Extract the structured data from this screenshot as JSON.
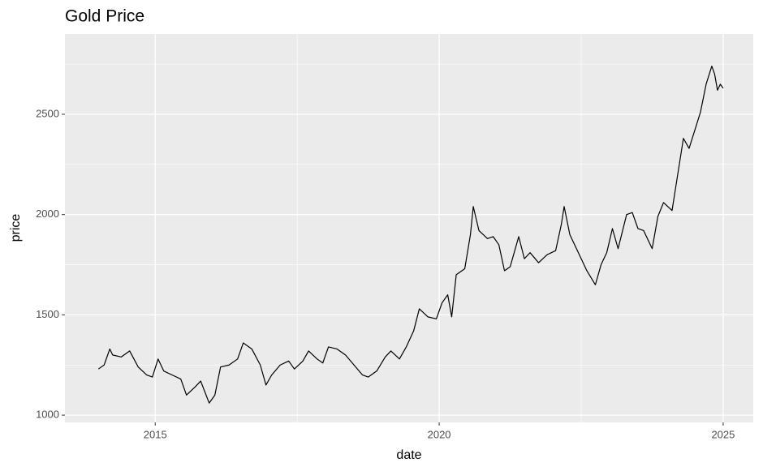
{
  "chart_data": {
    "type": "line",
    "title": "Gold Price",
    "x_label": "date",
    "y_label": "price",
    "x": [
      2014.0,
      2014.1,
      2014.2,
      2014.25,
      2014.4,
      2014.55,
      2014.7,
      2014.85,
      2014.95,
      2015.05,
      2015.15,
      2015.3,
      2015.45,
      2015.55,
      2015.7,
      2015.8,
      2015.95,
      2016.05,
      2016.15,
      2016.3,
      2016.45,
      2016.55,
      2016.7,
      2016.85,
      2016.95,
      2017.05,
      2017.2,
      2017.35,
      2017.45,
      2017.6,
      2017.7,
      2017.85,
      2017.95,
      2018.05,
      2018.2,
      2018.35,
      2018.5,
      2018.65,
      2018.75,
      2018.9,
      2019.05,
      2019.15,
      2019.3,
      2019.42,
      2019.55,
      2019.65,
      2019.8,
      2019.95,
      2020.05,
      2020.15,
      2020.22,
      2020.3,
      2020.45,
      2020.55,
      2020.6,
      2020.7,
      2020.85,
      2020.95,
      2021.05,
      2021.15,
      2021.25,
      2021.4,
      2021.5,
      2021.6,
      2021.75,
      2021.9,
      2022.05,
      2022.15,
      2022.2,
      2022.3,
      2022.45,
      2022.6,
      2022.75,
      2022.85,
      2022.95,
      2023.05,
      2023.15,
      2023.3,
      2023.4,
      2023.5,
      2023.6,
      2023.75,
      2023.85,
      2023.95,
      2024.1,
      2024.2,
      2024.3,
      2024.4,
      2024.5,
      2024.6,
      2024.7,
      2024.8,
      2024.85,
      2024.9,
      2024.95,
      2025.0
    ],
    "series": [
      {
        "name": "price",
        "color": "#000000",
        "values": [
          1230,
          1250,
          1330,
          1300,
          1290,
          1320,
          1240,
          1200,
          1190,
          1280,
          1220,
          1200,
          1180,
          1100,
          1140,
          1170,
          1060,
          1100,
          1240,
          1250,
          1280,
          1360,
          1330,
          1250,
          1150,
          1200,
          1250,
          1270,
          1230,
          1270,
          1320,
          1280,
          1260,
          1340,
          1330,
          1300,
          1250,
          1200,
          1190,
          1220,
          1290,
          1320,
          1280,
          1340,
          1420,
          1530,
          1490,
          1480,
          1560,
          1600,
          1490,
          1700,
          1730,
          1900,
          2040,
          1920,
          1880,
          1890,
          1850,
          1720,
          1740,
          1890,
          1780,
          1810,
          1760,
          1800,
          1820,
          1950,
          2040,
          1900,
          1810,
          1720,
          1650,
          1750,
          1810,
          1930,
          1830,
          2000,
          2010,
          1930,
          1920,
          1830,
          1990,
          2060,
          2020,
          2200,
          2380,
          2330,
          2420,
          2510,
          2650,
          2740,
          2700,
          2620,
          2650,
          2630
        ]
      }
    ],
    "xlim": [
      2013.41,
      2025.53
    ],
    "xticks": [
      2015,
      2020,
      2025
    ],
    "xminor": [
      2017.5,
      2022.5
    ],
    "ylim": [
      964,
      2900
    ],
    "yticks": [
      1000,
      1500,
      2000,
      2500
    ],
    "yminor": [
      1250,
      1750,
      2250,
      2750
    ],
    "grid": true
  }
}
